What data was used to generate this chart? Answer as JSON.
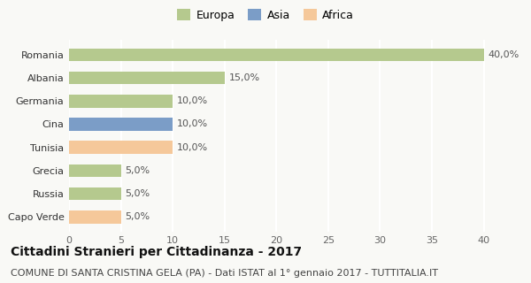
{
  "categories": [
    "Capo Verde",
    "Russia",
    "Grecia",
    "Tunisia",
    "Cina",
    "Germania",
    "Albania",
    "Romania"
  ],
  "values": [
    5.0,
    5.0,
    5.0,
    10.0,
    10.0,
    10.0,
    15.0,
    40.0
  ],
  "colors": [
    "#f5c89a",
    "#b5c98e",
    "#b5c98e",
    "#f5c89a",
    "#7b9dc7",
    "#b5c98e",
    "#b5c98e",
    "#b5c98e"
  ],
  "bar_labels": [
    "5,0%",
    "5,0%",
    "5,0%",
    "10,0%",
    "10,0%",
    "10,0%",
    "15,0%",
    "40,0%"
  ],
  "xlim": [
    0,
    42
  ],
  "xticks": [
    0,
    5,
    10,
    15,
    20,
    25,
    30,
    35,
    40
  ],
  "title": "Cittadini Stranieri per Cittadinanza - 2017",
  "subtitle": "COMUNE DI SANTA CRISTINA GELA (PA) - Dati ISTAT al 1° gennaio 2017 - TUTTITALIA.IT",
  "legend_labels": [
    "Europa",
    "Asia",
    "Africa"
  ],
  "legend_colors": [
    "#b5c98e",
    "#7b9dc7",
    "#f5c89a"
  ],
  "background_color": "#f9f9f6",
  "grid_color": "#ffffff",
  "title_fontsize": 10,
  "subtitle_fontsize": 8,
  "label_fontsize": 8,
  "tick_fontsize": 8,
  "legend_fontsize": 9
}
